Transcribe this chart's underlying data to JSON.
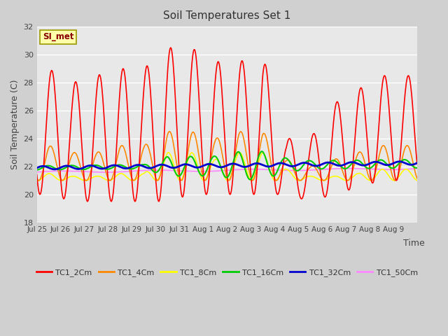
{
  "title": "Soil Temperatures Set 1",
  "ylabel": "Soil Temperature (C)",
  "xlabel": "Time",
  "annotation": "SI_met",
  "ylim": [
    18,
    32
  ],
  "fig_bg_color": "#d0d0d0",
  "plot_bg_color": "#e8e8e8",
  "series_colors": {
    "TC1_2Cm": "#ff0000",
    "TC1_4Cm": "#ff8800",
    "TC1_8Cm": "#ffff00",
    "TC1_16Cm": "#00cc00",
    "TC1_32Cm": "#0000cc",
    "TC1_50Cm": "#ff88ff"
  },
  "xtick_labels": [
    "Jul 25",
    "Jul 26",
    "Jul 27",
    "Jul 28",
    "Jul 29",
    "Jul 30",
    "Jul 31",
    "Aug 1",
    "Aug 2",
    "Aug 3",
    "Aug 4",
    "Aug 5",
    "Aug 6",
    "Aug 7",
    "Aug 8",
    "Aug 9"
  ],
  "ytick_labels": [
    "18",
    "20",
    "22",
    "24",
    "26",
    "28",
    "30",
    "32"
  ],
  "ytick_vals": [
    18,
    20,
    22,
    24,
    26,
    28,
    30,
    32
  ],
  "num_days": 16,
  "points_per_day": 48
}
